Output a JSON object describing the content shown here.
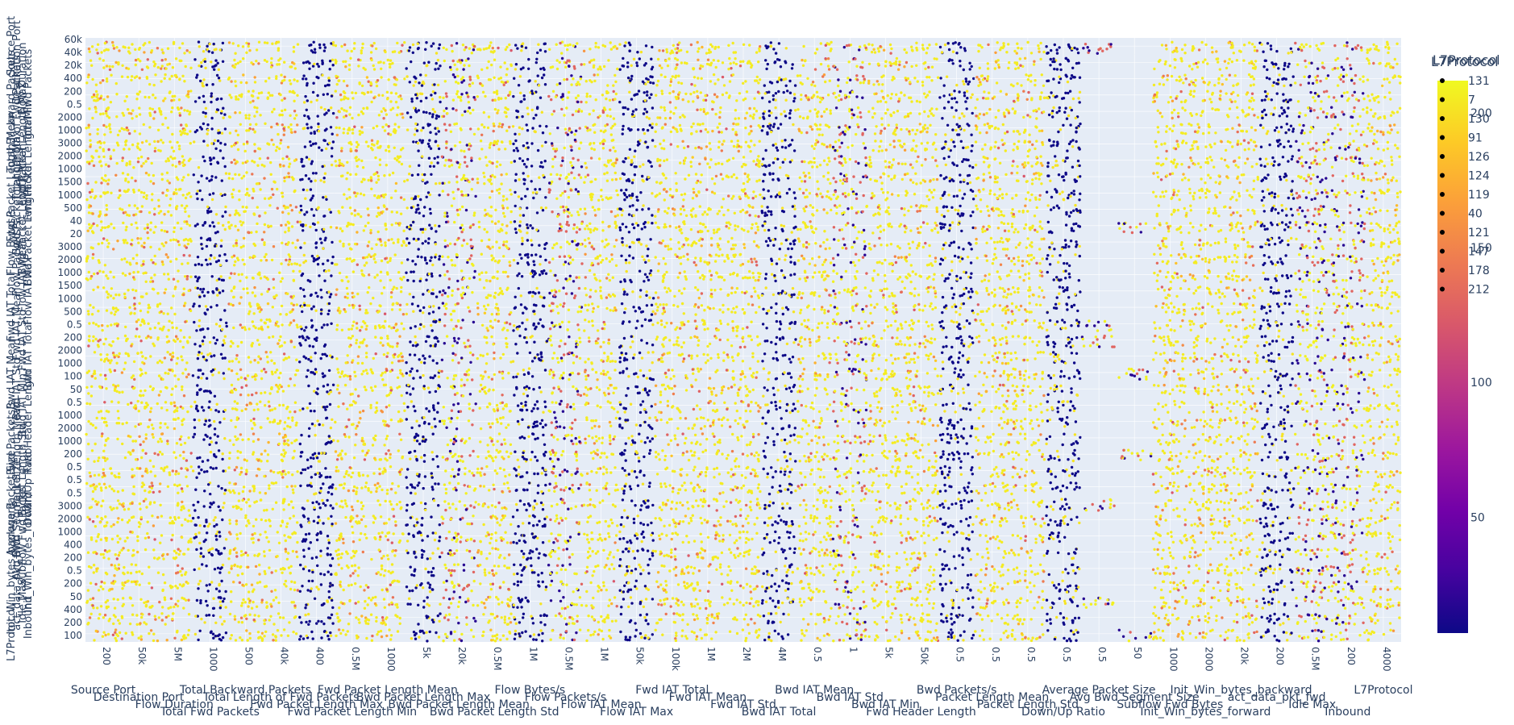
{
  "chart_data": {
    "type": "scatter",
    "subtype": "scatter-matrix",
    "grid": true,
    "color_by": "L7Protocol",
    "dimensions": [
      "Source Port",
      "Destination Port",
      "Flow Duration",
      "Total Fwd Packets",
      "Total Backward Packets",
      "Total Length of Fwd Packets",
      "Fwd Packet Length Max",
      "Fwd Packet Length Min",
      "Fwd Packet Length Mean",
      "Bwd Packet Length Max",
      "Bwd Packet Length Mean",
      "Bwd Packet Length Std",
      "Flow Bytes/s",
      "Flow Packets/s",
      "Flow IAT Mean",
      "Flow IAT Max",
      "Fwd IAT Total",
      "Fwd IAT Mean",
      "Fwd IAT Std",
      "Bwd IAT Total",
      "Bwd IAT Mean",
      "Bwd IAT Std",
      "Bwd IAT Min",
      "Fwd Header Length",
      "Bwd Packets/s",
      "Packet Length Mean",
      "Packet Length Std",
      "Down/Up Ratio",
      "Average Packet Size",
      "Avg Bwd Segment Size",
      "Subflow Fwd Bytes",
      "Init_Win_bytes_forward",
      "Init_Win_bytes_backward",
      "act_data_pkt_fwd",
      "Idle Max",
      "Inbound",
      "L7Protocol"
    ],
    "x_tick_labels": [
      "200",
      "50k",
      "5M",
      "1000",
      "500",
      "40k",
      "400",
      "0.5M",
      "1000",
      "5k",
      "20k",
      "0.5M",
      "1M",
      "0.5M",
      "1M",
      "50k",
      "100k",
      "1M",
      "2M",
      "4M",
      "0.5",
      "1",
      "5k",
      "50k",
      "0.5",
      "0.5",
      "0.5",
      "0.5",
      "0.5",
      "50",
      "1000",
      "2000",
      "20k",
      "200",
      "0.5M",
      "200",
      "4000"
    ],
    "y_tick_labels": [
      "60k",
      "40k",
      "20k",
      "400",
      "200",
      "0.5",
      "2000",
      "1000",
      "3000",
      "2000",
      "1000",
      "1500",
      "1000",
      "500",
      "40",
      "20",
      "3000",
      "2000",
      "1000",
      "1500",
      "1000",
      "500",
      "0.5",
      "200",
      "2000",
      "1000",
      "100",
      "50",
      "0.5",
      "1000",
      "2000",
      "1000",
      "200",
      "0.5",
      "0.5",
      "0.5",
      "3000",
      "2000",
      "1000",
      "400",
      "200",
      "0.5",
      "200",
      "50",
      "400",
      "200",
      "100"
    ],
    "legend": {
      "title": "L7Protocol",
      "placement": "right",
      "categories": [
        "131",
        "7",
        "130",
        "91",
        "126",
        "124",
        "119",
        "40",
        "121",
        "147",
        "178",
        "212"
      ]
    },
    "colorbar": {
      "title": "L7Protocol",
      "tick_labels": [
        "200",
        "150",
        "100",
        "50"
      ],
      "range": [
        7,
        212
      ],
      "colorscale": [
        "#0d0887",
        "#46039f",
        "#7201a8",
        "#9c179e",
        "#bd3786",
        "#d8576b",
        "#ed7953",
        "#fb9f3a",
        "#fdca26",
        "#f0f921"
      ]
    }
  }
}
